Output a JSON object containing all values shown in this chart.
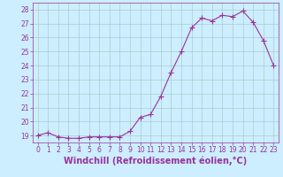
{
  "x": [
    0,
    1,
    2,
    3,
    4,
    5,
    6,
    7,
    8,
    9,
    10,
    11,
    12,
    13,
    14,
    15,
    16,
    17,
    18,
    19,
    20,
    21,
    22,
    23
  ],
  "y": [
    19.0,
    19.2,
    18.9,
    18.8,
    18.8,
    18.9,
    18.9,
    18.9,
    18.9,
    19.3,
    20.3,
    20.5,
    21.8,
    23.5,
    25.0,
    26.7,
    27.4,
    27.2,
    27.6,
    27.5,
    27.9,
    27.1,
    25.8,
    24.0
  ],
  "line_color": "#993399",
  "marker": "+",
  "marker_size": 4,
  "bg_color": "#cceeff",
  "grid_color": "#aacccc",
  "xlabel": "Windchill (Refroidissement éolien,°C)",
  "xlabel_color": "#993399",
  "ylim_min": 18.5,
  "ylim_max": 28.5,
  "xlim_min": -0.5,
  "xlim_max": 23.5,
  "yticks": [
    19,
    20,
    21,
    22,
    23,
    24,
    25,
    26,
    27,
    28
  ],
  "xticks": [
    0,
    1,
    2,
    3,
    4,
    5,
    6,
    7,
    8,
    9,
    10,
    11,
    12,
    13,
    14,
    15,
    16,
    17,
    18,
    19,
    20,
    21,
    22,
    23
  ],
  "tick_fontsize": 5.5,
  "label_fontsize": 7.0,
  "linewidth": 0.8,
  "marker_linewidth": 0.8
}
